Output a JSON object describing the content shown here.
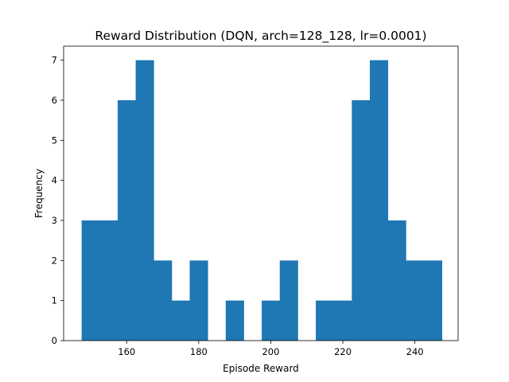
{
  "chart_data": {
    "type": "bar",
    "title": "Reward Distribution (DQN, arch=128_128, lr=0.0001)",
    "xlabel": "Episode Reward",
    "ylabel": "Frequency",
    "xlim": [
      142.5,
      252.0
    ],
    "ylim": [
      0,
      7.35
    ],
    "xticks": [
      160,
      180,
      200,
      220,
      240
    ],
    "yticks": [
      0,
      1,
      2,
      3,
      4,
      5,
      6,
      7
    ],
    "grid": false,
    "bar_color": "#1f77b4",
    "bins": [
      {
        "x0": 147.5,
        "x1": 152.5,
        "count": 3
      },
      {
        "x0": 152.5,
        "x1": 157.5,
        "count": 3
      },
      {
        "x0": 157.5,
        "x1": 162.5,
        "count": 6
      },
      {
        "x0": 162.5,
        "x1": 167.5,
        "count": 7
      },
      {
        "x0": 167.5,
        "x1": 172.5,
        "count": 2
      },
      {
        "x0": 172.5,
        "x1": 177.5,
        "count": 1
      },
      {
        "x0": 177.5,
        "x1": 182.5,
        "count": 2
      },
      {
        "x0": 182.5,
        "x1": 187.5,
        "count": 0
      },
      {
        "x0": 187.5,
        "x1": 192.5,
        "count": 1
      },
      {
        "x0": 192.5,
        "x1": 197.5,
        "count": 0
      },
      {
        "x0": 197.5,
        "x1": 202.5,
        "count": 1
      },
      {
        "x0": 202.5,
        "x1": 207.5,
        "count": 2
      },
      {
        "x0": 207.5,
        "x1": 212.5,
        "count": 0
      },
      {
        "x0": 212.5,
        "x1": 217.5,
        "count": 1
      },
      {
        "x0": 217.5,
        "x1": 222.5,
        "count": 1
      },
      {
        "x0": 222.5,
        "x1": 227.5,
        "count": 6
      },
      {
        "x0": 227.5,
        "x1": 232.5,
        "count": 7
      },
      {
        "x0": 232.5,
        "x1": 237.5,
        "count": 3
      },
      {
        "x0": 237.5,
        "x1": 242.5,
        "count": 2
      },
      {
        "x0": 242.5,
        "x1": 247.5,
        "count": 2
      }
    ]
  }
}
